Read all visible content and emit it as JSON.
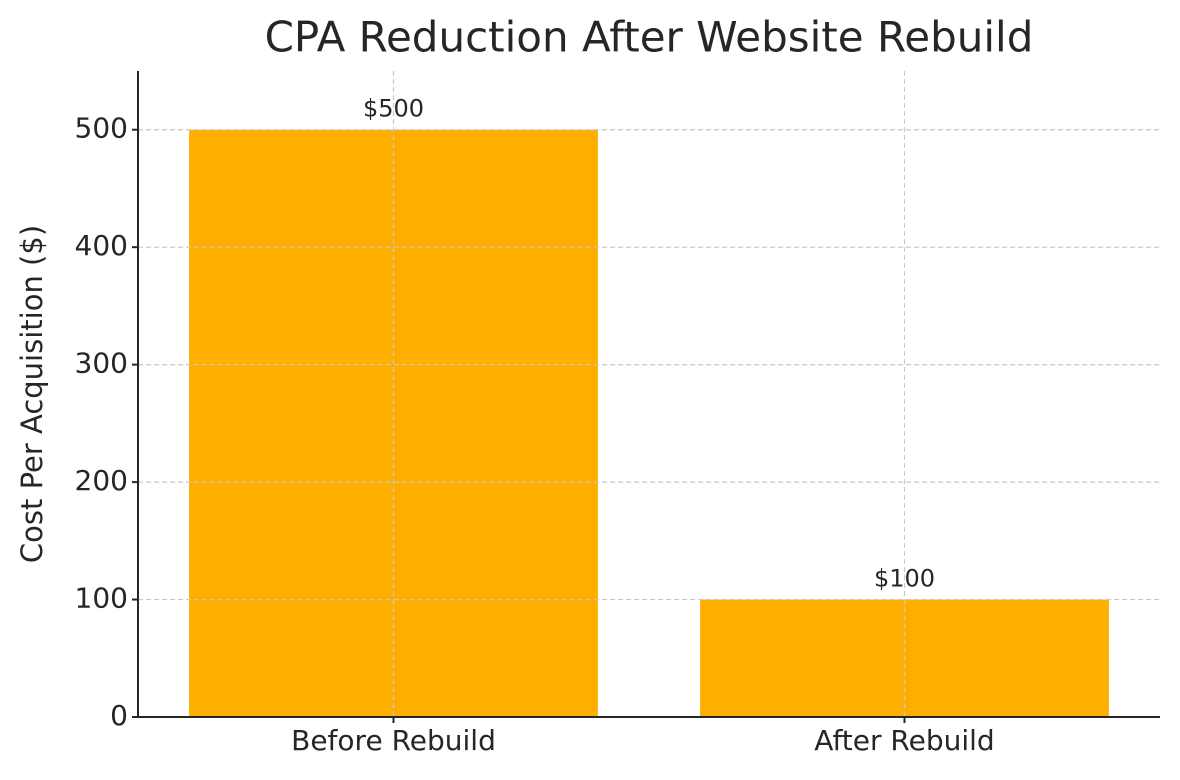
{
  "chart_data": {
    "type": "bar",
    "title": "CPA Reduction After Website Rebuild",
    "y_label": "Cost Per Acquisition ($)",
    "categories": [
      "Before Rebuild",
      "After Rebuild"
    ],
    "values": [
      500,
      100
    ],
    "value_labels": [
      "$500",
      "$100"
    ],
    "color": "#ffae00",
    "ylim": [
      0,
      550
    ],
    "yticks": [
      0,
      100,
      200,
      300,
      400,
      500
    ],
    "grid": true
  }
}
